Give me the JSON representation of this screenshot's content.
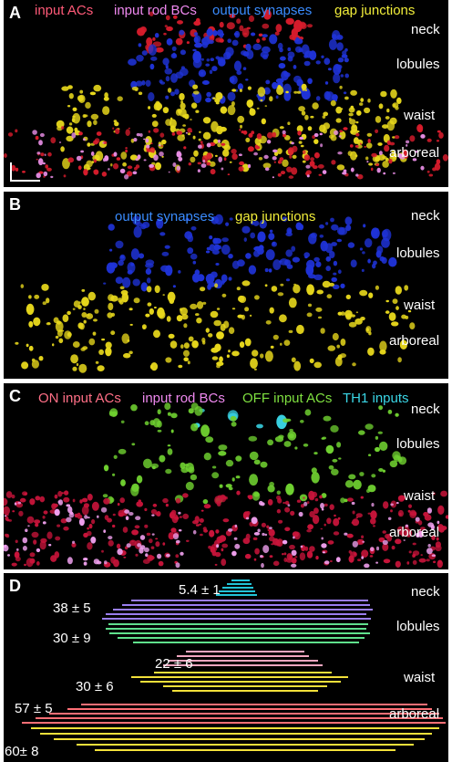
{
  "panelA": {
    "label": "A",
    "legend": [
      {
        "text": "input ACs",
        "color": "#ff5a78"
      },
      {
        "text": "input rod BCs",
        "color": "#ee88ee"
      },
      {
        "text": "output synapses",
        "color": "#3a8cff"
      },
      {
        "text": "gap junctions",
        "color": "#f2ee3a"
      }
    ],
    "layers": [
      "neck",
      "lobules",
      "waist",
      "arboreal"
    ]
  },
  "panelB": {
    "label": "B",
    "legend": [
      {
        "text": "output synapses",
        "color": "#3a8cff"
      },
      {
        "text": "gap junctions",
        "color": "#f2ee3a"
      }
    ],
    "layers": [
      "neck",
      "lobules",
      "waist",
      "arboreal"
    ]
  },
  "panelC": {
    "label": "C",
    "legend": [
      {
        "text": "ON input ACs",
        "color": "#ff6f86"
      },
      {
        "text": "input rod BCs",
        "color": "#ee88ee"
      },
      {
        "text": "OFF input ACs",
        "color": "#7fe040"
      },
      {
        "text": "TH1 inputs",
        "color": "#3ad6e6"
      }
    ],
    "layers": [
      "neck",
      "lobules",
      "waist",
      "arboreal"
    ]
  },
  "panelD": {
    "label": "D",
    "layers": [
      "neck",
      "lobules",
      "waist",
      "arboreal"
    ],
    "counts": [
      "5.4 ± 1",
      "38 ± 5",
      "30 ± 9",
      "22 ± 6",
      "30 ± 6",
      "57 ± 5",
      "60± 8"
    ],
    "colors": {
      "cyan": "#22c4d8",
      "purple": "#9a7ef0",
      "green": "#5fe08c",
      "pink": "#f2a6c0",
      "yellow": "#f2e03a",
      "red": "#ff6f76"
    }
  }
}
